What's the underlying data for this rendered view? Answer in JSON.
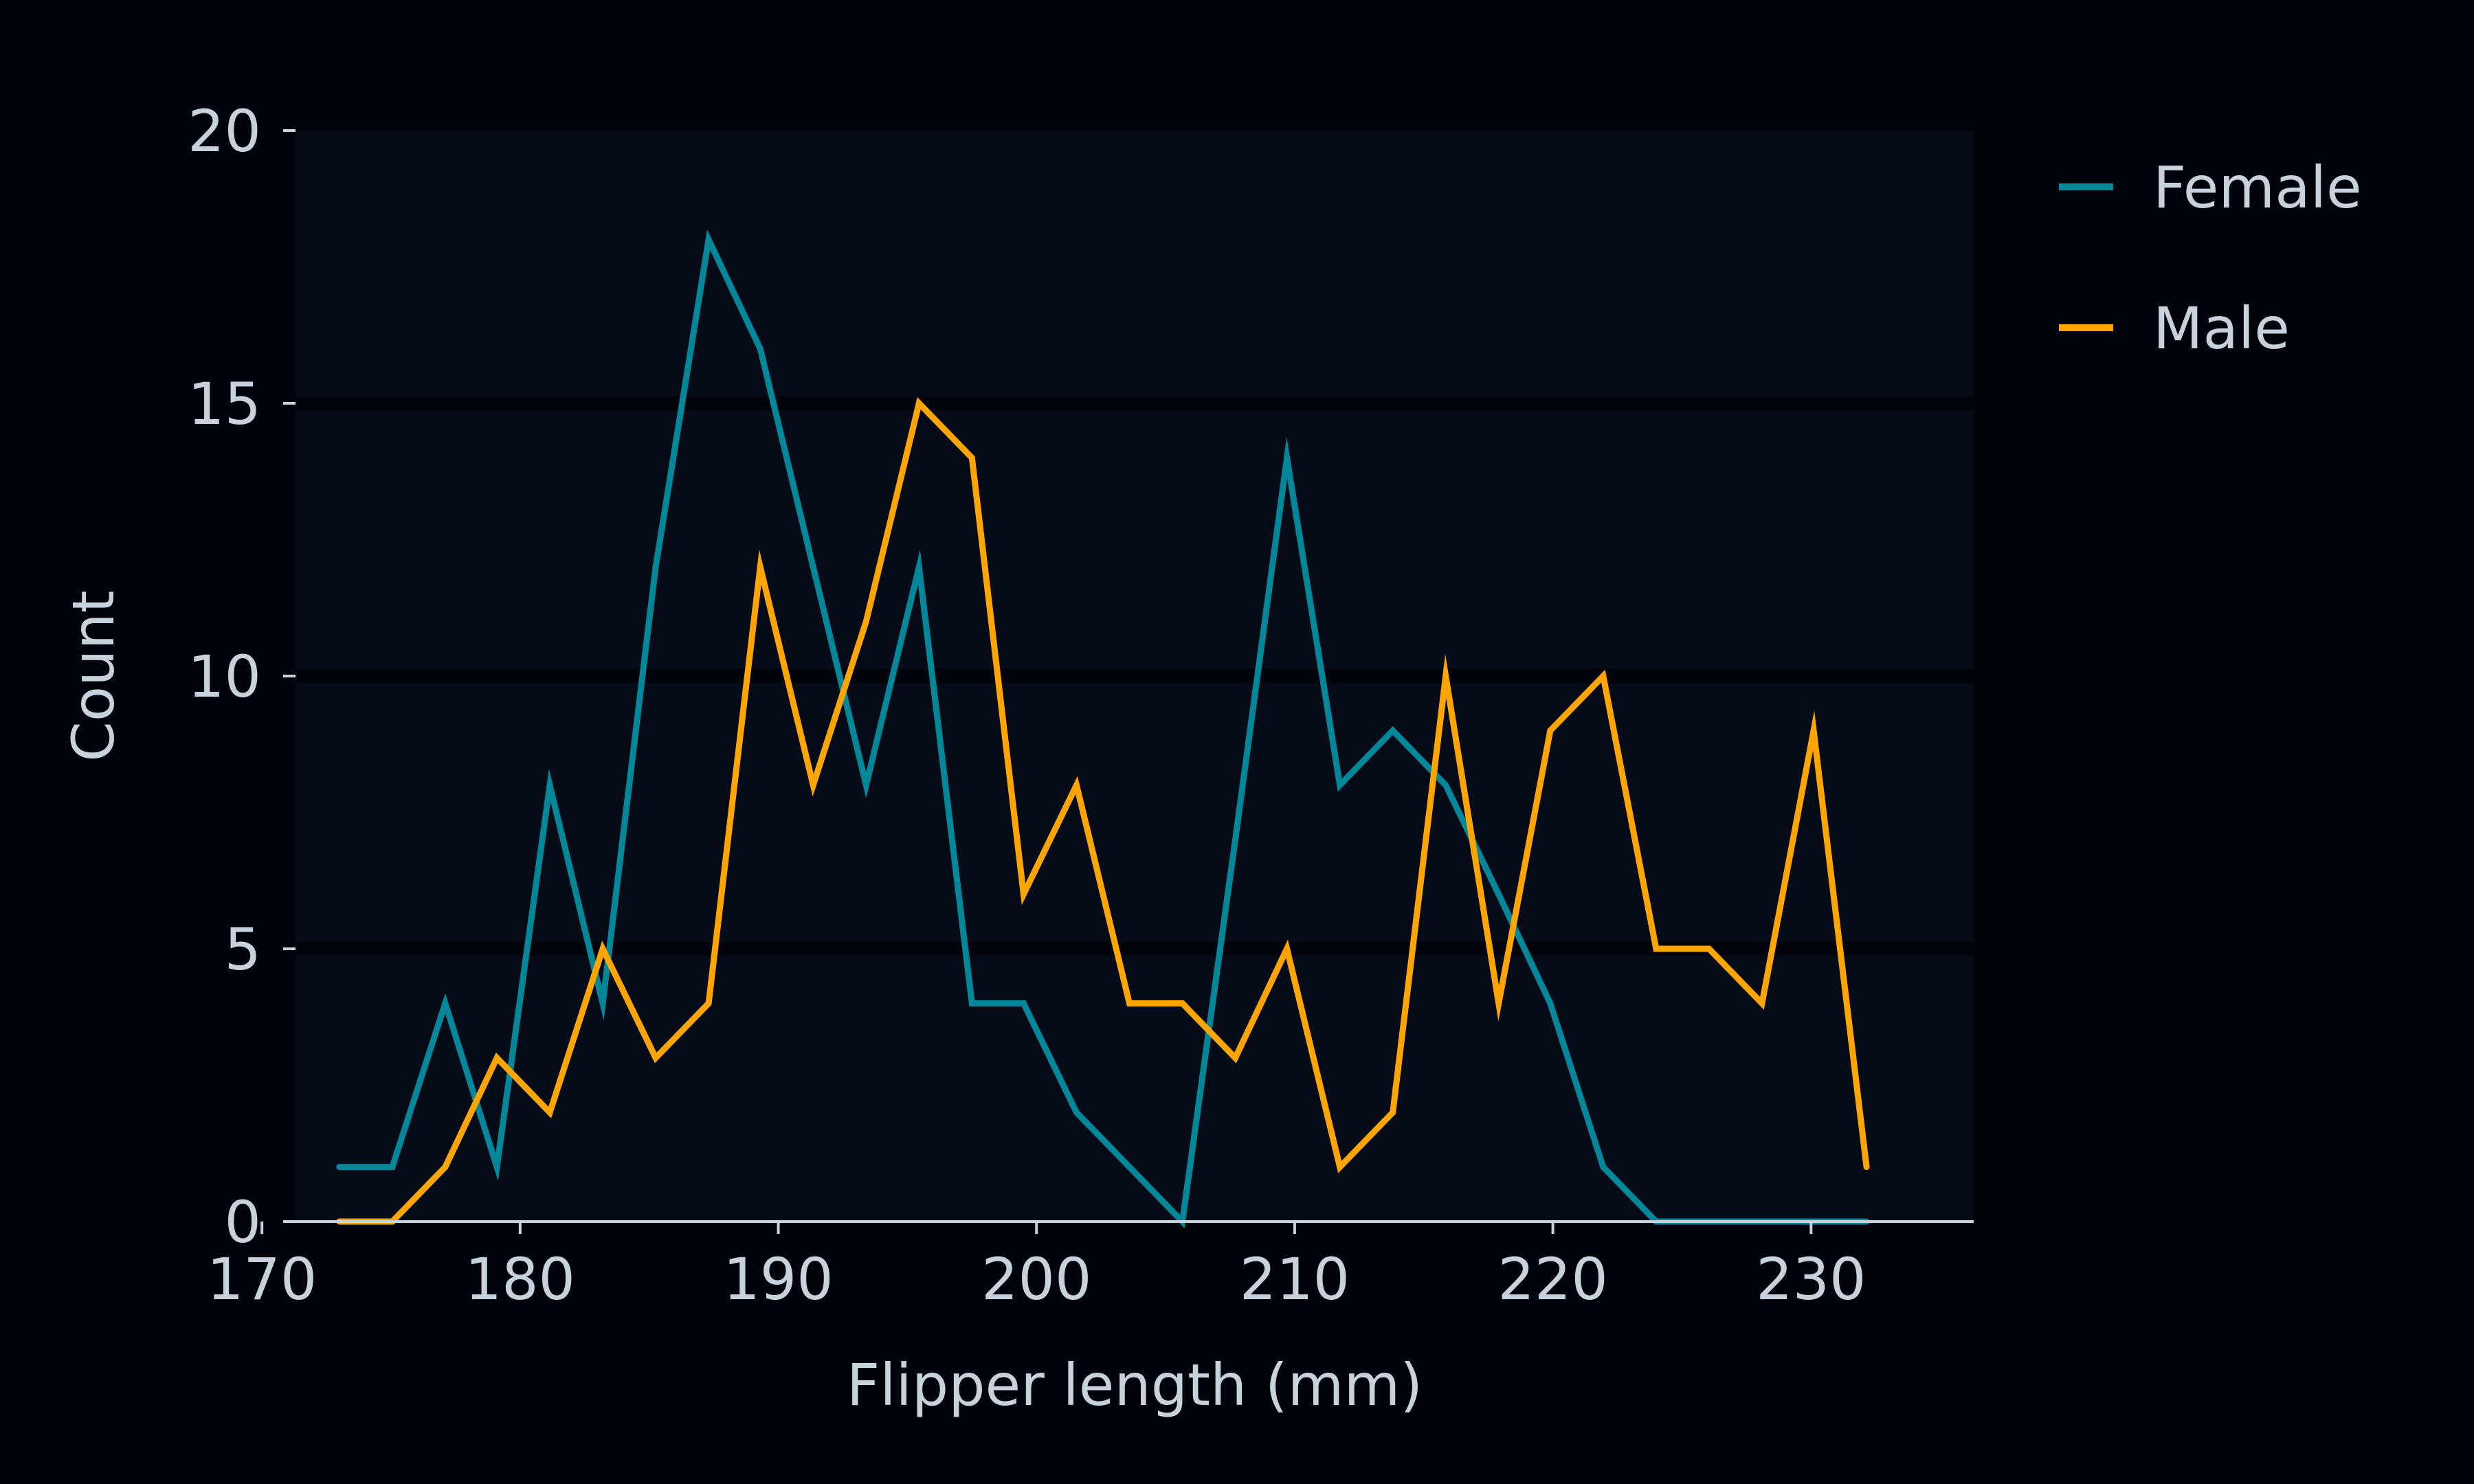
{
  "chart_data": {
    "type": "line",
    "title": "",
    "xlabel": "Flipper length (mm)",
    "ylabel": "Count",
    "xlim": [
      171.3,
      236.3
    ],
    "ylim": [
      0,
      20
    ],
    "xticks": [
      170,
      180,
      190,
      200,
      210,
      220,
      230
    ],
    "yticks": [
      0,
      5,
      10,
      15,
      20
    ],
    "grid": "horizontal",
    "legend_position": "outside-right",
    "background_color": "#00030a",
    "plot_background_color": "#050c17",
    "grid_color": "#00030a",
    "text_color": "#c8d2dc",
    "x": [
      173.0,
      175.05,
      177.1,
      179.1,
      181.15,
      183.2,
      185.25,
      187.3,
      189.3,
      191.35,
      193.4,
      195.45,
      197.5,
      199.5,
      201.55,
      203.6,
      205.65,
      207.7,
      209.7,
      211.75,
      213.8,
      215.85,
      217.9,
      219.9,
      221.95,
      224.0,
      226.05,
      228.1,
      230.1,
      232.15
    ],
    "series": [
      {
        "name": "Female",
        "color": "#00889a",
        "values": [
          1,
          1,
          4,
          1,
          8,
          4,
          12,
          18,
          16,
          12,
          8,
          12,
          4,
          4,
          2,
          1,
          0,
          7,
          14,
          8,
          9,
          8,
          6,
          4,
          1,
          0,
          0,
          0,
          0,
          0
        ]
      },
      {
        "name": "Male",
        "color": "#ffa500",
        "values": [
          0,
          0,
          1,
          3,
          2,
          5,
          3,
          4,
          12,
          8,
          11,
          15,
          14,
          6,
          8,
          4,
          4,
          3,
          5,
          1,
          2,
          10,
          4,
          9,
          10,
          5,
          5,
          4,
          9,
          1
        ]
      }
    ]
  }
}
